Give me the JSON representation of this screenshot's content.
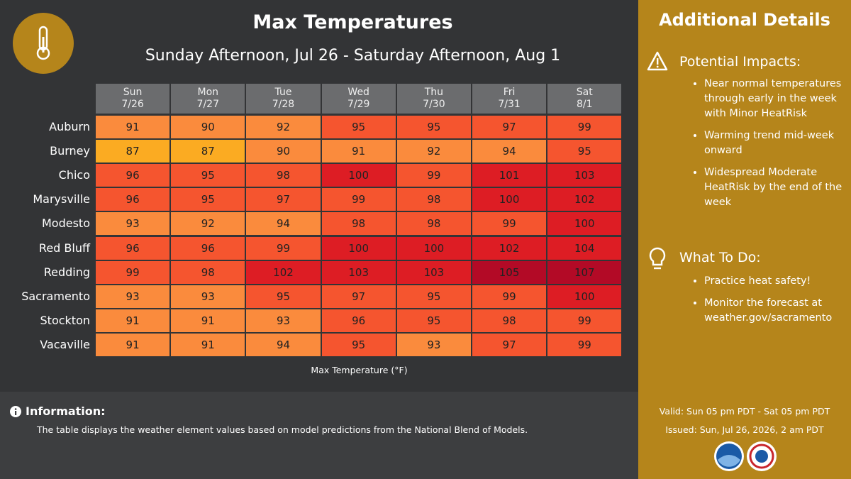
{
  "header": {
    "title": "Max Temperatures",
    "subtitle": "Sunday Afternoon, Jul 26 - Saturday Afternoon, Aug 1"
  },
  "table": {
    "columns": [
      {
        "day": "Sun",
        "date": "7/26"
      },
      {
        "day": "Mon",
        "date": "7/27"
      },
      {
        "day": "Tue",
        "date": "7/28"
      },
      {
        "day": "Wed",
        "date": "7/29"
      },
      {
        "day": "Thu",
        "date": "7/30"
      },
      {
        "day": "Fri",
        "date": "7/31"
      },
      {
        "day": "Sat",
        "date": "8/1"
      }
    ],
    "rows": [
      {
        "name": "Auburn",
        "values": [
          91,
          90,
          92,
          95,
          95,
          97,
          99
        ]
      },
      {
        "name": "Burney",
        "values": [
          87,
          87,
          90,
          91,
          92,
          94,
          95
        ]
      },
      {
        "name": "Chico",
        "values": [
          96,
          95,
          98,
          100,
          99,
          101,
          103
        ]
      },
      {
        "name": "Marysville",
        "values": [
          96,
          95,
          97,
          99,
          98,
          100,
          102
        ]
      },
      {
        "name": "Modesto",
        "values": [
          93,
          92,
          94,
          98,
          98,
          99,
          100
        ]
      },
      {
        "name": "Red Bluff",
        "values": [
          96,
          96,
          99,
          100,
          100,
          102,
          104
        ]
      },
      {
        "name": "Redding",
        "values": [
          99,
          98,
          102,
          103,
          103,
          105,
          107
        ]
      },
      {
        "name": "Sacramento",
        "values": [
          93,
          93,
          95,
          97,
          95,
          99,
          100
        ]
      },
      {
        "name": "Stockton",
        "values": [
          91,
          91,
          93,
          96,
          95,
          98,
          99
        ]
      },
      {
        "name": "Vacaville",
        "values": [
          91,
          91,
          94,
          95,
          93,
          97,
          99
        ]
      }
    ],
    "caption": "Max Temperature (°F)"
  },
  "information": {
    "title": "Information:",
    "text": "The table displays the weather element values based on model predictions from the National Blend of Models."
  },
  "details": {
    "title": "Additional Details",
    "sections": [
      {
        "heading": "Potential Impacts:",
        "items": [
          "Near normal temperatures through early in the week with Minor HeatRisk",
          "Warming trend mid-week onward",
          "Widespread Moderate HeatRisk by the end of the week"
        ]
      },
      {
        "heading": "What To Do:",
        "items": [
          "Practice heat safety!",
          "Monitor the forecast at weather.gov/sacramento"
        ]
      }
    ],
    "valid": "Valid: Sun 05 pm PDT - Sat 05 pm PDT",
    "issued": "Issued: Sun, Jul 26, 2026, 2 am PDT"
  }
}
